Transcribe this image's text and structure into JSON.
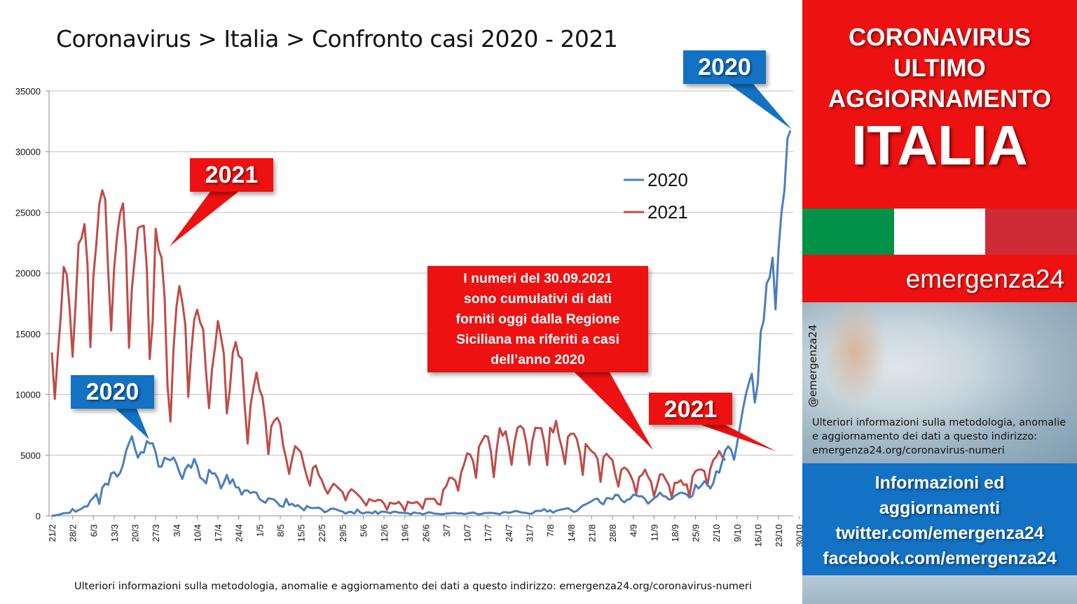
{
  "title": "Coronavirus > Italia > Confronto casi 2020 - 2021",
  "footnote": "Ulteriori informazioni sulla metodologia, anomalie e aggiornamento dei dati a questo indirizzo: emergenza24.org/coronavirus-numeri",
  "callouts": {
    "top_2021": "2021",
    "top_2020": "2020",
    "mid_2020": "2020",
    "right_2021": "2021",
    "note_lines": [
      "I numeri del 30.09.2021",
      "sono cumulativi di dati",
      "forniti oggi dalla Regione",
      "Siciliana ma riferiti a casi",
      "dell’anno 2020"
    ]
  },
  "sidebar": {
    "line1": "CORONAVIRUS",
    "line2": "ULTIMO",
    "line3": "AGGIORNAMENTO",
    "country": "ITALIA",
    "brand": "emergenza24",
    "handle": "@emergenza24",
    "info": "Ulteriori informazioni sulla metodologia, anomalie e aggiornamento dei dati a questo indirizzo: emergenza24.org/coronavirus-numeri",
    "social": [
      "Informazioni ed",
      "aggiornamenti",
      "twitter.com/emergenza24",
      "facebook.com/emergenza24"
    ]
  },
  "colors": {
    "red": "#ee1111",
    "blue": "#1372c4",
    "flag_green": "#009246",
    "flag_white": "#ffffff",
    "flag_red": "#ce2b37",
    "series_2020": "#4a7ebb",
    "series_2021": "#be4b48"
  },
  "chart_data": {
    "type": "line",
    "title": "Coronavirus > Italia > Confronto casi 2020 - 2021",
    "xlabel": "",
    "ylabel": "",
    "ylim": [
      0,
      35000
    ],
    "yticks": [
      0,
      5000,
      10000,
      15000,
      20000,
      25000,
      30000,
      35000
    ],
    "x_ticks": [
      "21/2",
      "28/2",
      "6/3",
      "13/3",
      "20/3",
      "27/3",
      "3/4",
      "10/4",
      "17/4",
      "24/4",
      "1/5",
      "8/5",
      "15/5",
      "22/5",
      "29/5",
      "5/6",
      "12/6",
      "19/6",
      "26/6",
      "3/7",
      "10/7",
      "17/7",
      "24/7",
      "31/7",
      "7/8",
      "14/8",
      "21/8",
      "28/8",
      "4/9",
      "11/9",
      "18/9",
      "25/9",
      "2/10",
      "9/10",
      "16/10",
      "23/10",
      "30/10"
    ],
    "legend": "right-inside",
    "grid": "horizontal",
    "series": [
      {
        "name": "2020",
        "values": [
          14,
          17,
          79,
          132,
          221,
          233,
          240,
          566,
          342,
          466,
          587,
          769,
          778,
          1247,
          1492,
          1797,
          977,
          2313,
          2651,
          2547,
          3497,
          3590,
          3233,
          3526,
          4207,
          5322,
          5986,
          6557,
          5560,
          4789,
          5249,
          5210,
          6153,
          5959,
          5974,
          5217,
          4050,
          4053,
          4782,
          4668,
          4585,
          4805,
          4316,
          3599,
          3039,
          3836,
          4204,
          3951,
          4694,
          4092,
          3153,
          2972,
          2667,
          3786,
          3493,
          3491,
          3047,
          2256,
          2729,
          3370,
          2646,
          3021,
          2357,
          2324,
          1739,
          2091,
          2086,
          1872,
          1965,
          1900,
          1389,
          1221,
          1075,
          1444,
          1401,
          1327,
          1083,
          802,
          744,
          1402,
          888,
          992,
          789,
          875,
          675,
          451,
          813,
          665,
          642,
          652,
          669,
          531,
          300,
          397,
          584,
          593,
          516,
          416,
          355,
          178,
          318,
          321,
          177,
          518,
          270,
          197,
          280,
          283,
          202,
          379,
          163,
          346,
          338,
          301,
          210,
          329,
          333,
          251,
          262,
          224,
          221,
          113,
          282,
          224,
          218,
          122,
          190,
          296,
          259,
          175,
          174,
          126,
          142,
          182,
          201,
          223,
          235,
          192,
          208,
          138,
          193,
          229,
          276,
          188,
          114,
          163,
          230,
          233,
          249,
          219,
          190,
          129,
          282,
          306,
          252,
          289,
          386,
          379,
          295,
          259,
          239,
          159,
          190,
          384,
          412,
          402,
          552,
          347,
          463,
          259,
          412,
          481,
          523,
          574,
          629,
          479,
          320,
          403,
          642,
          845,
          947,
          1071,
          1210,
          1367,
          1411,
          1071,
          953,
          1460,
          1444,
          1365,
          1733,
          1695,
          1297,
          1108,
          1326,
          1397,
          1733,
          1694,
          1597,
          1616,
          1370,
          996,
          1229,
          1434,
          1597,
          1907,
          1638,
          1587,
          1350,
          1392,
          1640,
          1786,
          1912,
          1869,
          1766,
          1494,
          1648,
          2548,
          2257,
          2499,
          2844,
          2578,
          2257,
          2677,
          3678,
          3551,
          4458,
          5372,
          5724,
          5456,
          4619,
          5901,
          7332,
          8804,
          10010,
          10925,
          11705,
          9338,
          10874,
          15199,
          16079,
          19143,
          19644,
          21273,
          17012,
          21994,
          24991,
          26831,
          31084,
          31758
        ]
      },
      {
        "name": "2021",
        "values": [
          13452,
          9630,
          13314,
          16424,
          20499,
          19886,
          17083,
          13114,
          17455,
          22409,
          22865,
          24036,
          20765,
          13902,
          19749,
          22409,
          25673,
          26824,
          26062,
          20159,
          15267,
          20396,
          23059,
          24935,
          25735,
          21932,
          13846,
          18765,
          21267,
          23696,
          23839,
          23904,
          20396,
          12916,
          16017,
          23649,
          21932,
          21261,
          18025,
          10680,
          7767,
          13708,
          17221,
          18938,
          17567,
          15746,
          9789,
          13447,
          16168,
          16974,
          15943,
          15370,
          11807,
          8864,
          12074,
          13844,
          16050,
          14761,
          13331,
          8444,
          10404,
          13446,
          14320,
          13158,
          12965,
          9148,
          5948,
          9116,
          10554,
          11807,
          10404,
          9789,
          7852,
          5080,
          7378,
          7852,
          8085,
          7567,
          5753,
          4717,
          3455,
          4694,
          5741,
          5506,
          5218,
          4147,
          3224,
          2490,
          3937,
          4147,
          3351,
          2949,
          2275,
          1820,
          2275,
          2645,
          2436,
          2199,
          1968,
          1273,
          1896,
          2199,
          2008,
          1777,
          1534,
          1198,
          850,
          1391,
          1255,
          1197,
          1325,
          1273,
          1006,
          495,
          1087,
          1011,
          1007,
          1147,
          835,
          386,
          1166,
          1050,
          1049,
          1156,
          942,
          577,
          1390,
          1394,
          1400,
          1394,
          1010,
          907,
          2153,
          2455,
          3127,
          3121,
          2898,
          2072,
          3558,
          4259,
          5143,
          5057,
          4522,
          3127,
          5696,
          6171,
          6599,
          6513,
          5321,
          3190,
          5506,
          7230,
          6596,
          6968,
          5735,
          4197,
          6076,
          7270,
          7409,
          7162,
          5959,
          4200,
          6162,
          7260,
          7230,
          7221,
          6076,
          4168,
          7260,
          6860,
          7826,
          6503,
          5559,
          4257,
          6503,
          6761,
          6761,
          6324,
          5217,
          3361,
          5923,
          5598,
          5315,
          5133,
          4664,
          2800,
          4830,
          5117,
          4830,
          4589,
          3377,
          2407,
          3797,
          3970,
          3804,
          3377,
          2800,
          1807,
          3190,
          3377,
          3804,
          3235,
          2800,
          1612,
          2456,
          3405,
          3405,
          2970,
          2540,
          1511,
          2727,
          2727,
          2942,
          2542,
          2600,
          1597,
          3235,
          3678,
          3794,
          3815,
          3678,
          2494,
          3882,
          4598,
          4866,
          5335,
          4866,
          4570
        ]
      }
    ]
  }
}
